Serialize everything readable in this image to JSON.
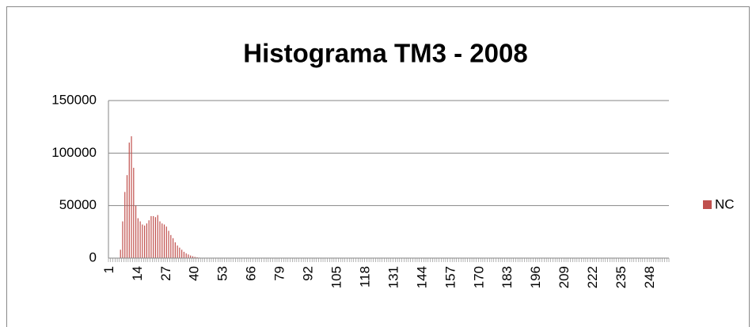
{
  "chart_data": {
    "type": "bar",
    "title": "Histograma TM3 - 2008",
    "categories": [
      "1",
      null,
      null,
      null,
      null,
      null,
      null,
      null,
      null,
      null,
      null,
      null,
      null,
      "14",
      null,
      null,
      null,
      null,
      null,
      null,
      null,
      null,
      null,
      null,
      null,
      null,
      "27",
      null,
      null,
      null,
      null,
      null,
      null,
      null,
      null,
      null,
      null,
      null,
      null,
      "40",
      null,
      null,
      null,
      null,
      null,
      null,
      null,
      null,
      null,
      null,
      null,
      null,
      "53",
      null,
      null,
      null,
      null,
      null,
      null,
      null,
      null,
      null,
      null,
      null,
      null,
      "66",
      null,
      null,
      null,
      null,
      null,
      null,
      null,
      null,
      null,
      null,
      null,
      null,
      "79",
      null,
      null,
      null,
      null,
      null,
      null,
      null,
      null,
      null,
      null,
      null,
      null,
      "92",
      null,
      null,
      null,
      null,
      null,
      null,
      null,
      null,
      null,
      null,
      null,
      null,
      "105",
      null,
      null,
      null,
      null,
      null,
      null,
      null,
      null,
      null,
      null,
      null,
      null,
      "118",
      null,
      null,
      null,
      null,
      null,
      null,
      null,
      null,
      null,
      null,
      null,
      null,
      "131",
      null,
      null,
      null,
      null,
      null,
      null,
      null,
      null,
      null,
      null,
      null,
      null,
      "144",
      null,
      null,
      null,
      null,
      null,
      null,
      null,
      null,
      null,
      null,
      null,
      null,
      "157",
      null,
      null,
      null,
      null,
      null,
      null,
      null,
      null,
      null,
      null,
      null,
      null,
      "170",
      null,
      null,
      null,
      null,
      null,
      null,
      null,
      null,
      null,
      null,
      null,
      null,
      "183",
      null,
      null,
      null,
      null,
      null,
      null,
      null,
      null,
      null,
      null,
      null,
      null,
      "196",
      null,
      null,
      null,
      null,
      null,
      null,
      null,
      null,
      null,
      null,
      null,
      null,
      "209",
      null,
      null,
      null,
      null,
      null,
      null,
      null,
      null,
      null,
      null,
      null,
      null,
      "222",
      null,
      null,
      null,
      null,
      null,
      null,
      null,
      null,
      null,
      null,
      null,
      null,
      "235",
      null,
      null,
      null,
      null,
      null,
      null,
      null,
      null,
      null,
      null,
      null,
      null,
      "248",
      null,
      null,
      null,
      null,
      null,
      null,
      null,
      null
    ],
    "series": [
      {
        "name": "NC",
        "color": "#c0504d",
        "values": [
          0,
          0,
          0,
          0,
          0,
          8000,
          35000,
          63000,
          79000,
          110000,
          116000,
          86000,
          50000,
          38000,
          35000,
          32000,
          31000,
          33000,
          36000,
          40000,
          40000,
          39000,
          41000,
          35000,
          33000,
          32000,
          30000,
          26000,
          22000,
          19000,
          15000,
          12000,
          10000,
          8000,
          6000,
          4500,
          3500,
          2500,
          1800,
          1200,
          800,
          500,
          300,
          200,
          100,
          0,
          0,
          0,
          0,
          0,
          0,
          0,
          0,
          0,
          0,
          0,
          0,
          0,
          0,
          0,
          0,
          0,
          0,
          0,
          0,
          0,
          0,
          0,
          0,
          0,
          0,
          0,
          0,
          0,
          0,
          0,
          0,
          0,
          0,
          0,
          0,
          0,
          0,
          0,
          0,
          0,
          0,
          0,
          0,
          0,
          0,
          0,
          0,
          0,
          0,
          0,
          0,
          0,
          0,
          0,
          0,
          0,
          0,
          0,
          0,
          0,
          0,
          0,
          0,
          0,
          0,
          0,
          0,
          0,
          0,
          0,
          0,
          0,
          0,
          0,
          0,
          0,
          0,
          0,
          0,
          0,
          0,
          0,
          0,
          0,
          0,
          0,
          0,
          0,
          0,
          0,
          0,
          0,
          0,
          0,
          0,
          0,
          0,
          0,
          0,
          0,
          0,
          0,
          0,
          0,
          0,
          0,
          0,
          0,
          0,
          0,
          0,
          0,
          0,
          0,
          0,
          0,
          0,
          0,
          0,
          0,
          0,
          0,
          0,
          0,
          0,
          0,
          0,
          0,
          0,
          0,
          0,
          0,
          0,
          0,
          0,
          0,
          0,
          0,
          0,
          0,
          0,
          0,
          0,
          0,
          0,
          0,
          0,
          0,
          0,
          0,
          0,
          0,
          0,
          0,
          0,
          0,
          0,
          0,
          0,
          0,
          0,
          0,
          0,
          0,
          0,
          0,
          0,
          0,
          0,
          0,
          0,
          0,
          0,
          0,
          0,
          0,
          0,
          0,
          0,
          0,
          0,
          0,
          0,
          0,
          0,
          0,
          0,
          0,
          0,
          0,
          0,
          0,
          0,
          0,
          0,
          0,
          0,
          0,
          0,
          0,
          0,
          0,
          0,
          0,
          0,
          0,
          0,
          0,
          0,
          0
        ]
      }
    ],
    "ylim": [
      0,
      150000
    ],
    "yticks": [
      0,
      50000,
      100000,
      150000
    ],
    "grid": true,
    "legend": "right"
  }
}
